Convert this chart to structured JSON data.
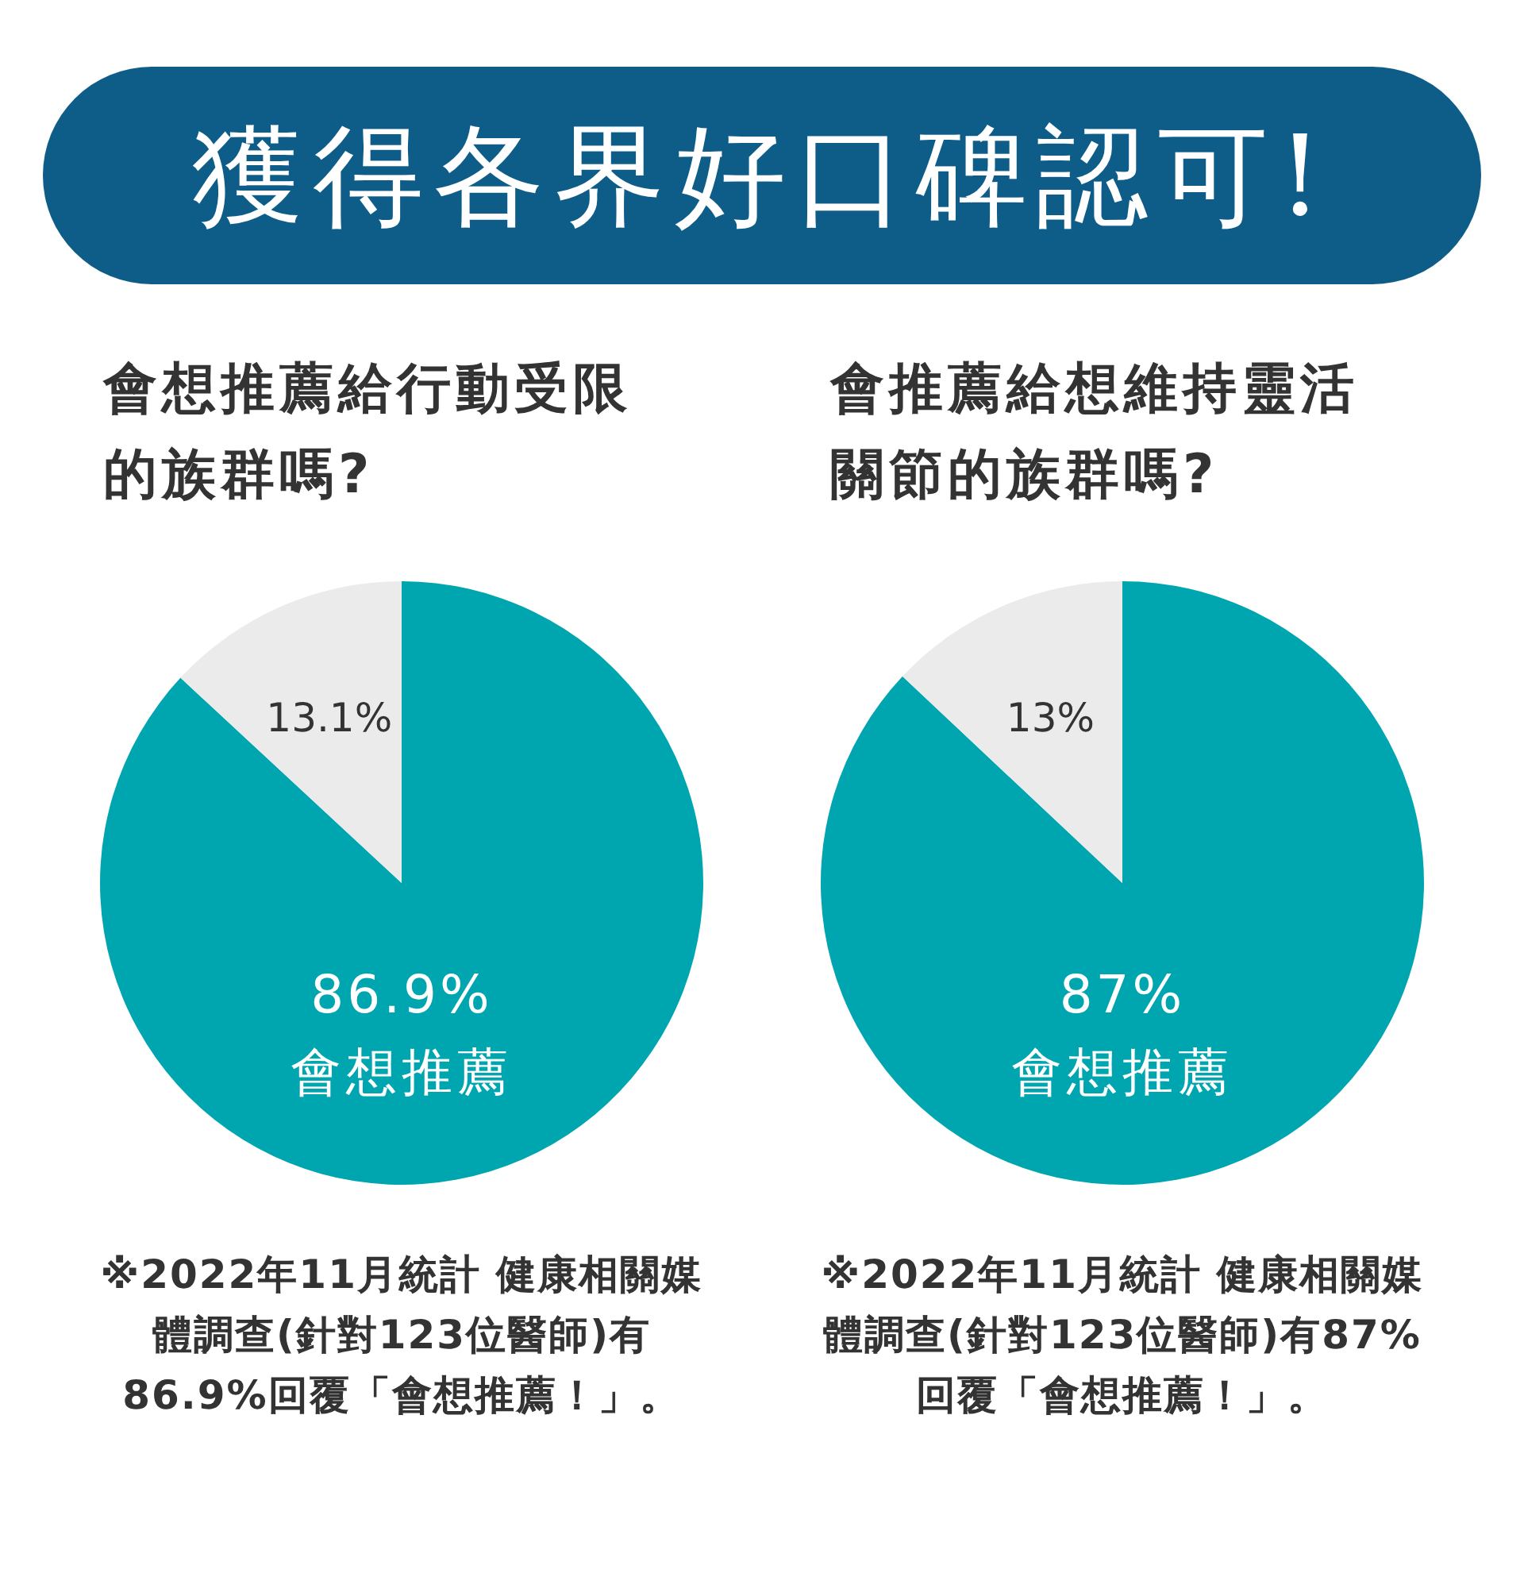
{
  "chart_data": [
    {
      "type": "pie",
      "title": "獲得各界好口碑認可!",
      "subtitle": "會想推薦給行動受限的族群嗎?",
      "categories": [
        "會想推薦",
        null
      ],
      "values": [
        86.9,
        13.1
      ],
      "colors": [
        "#00a6af",
        "#ebebeb"
      ],
      "value_labels": [
        "86.9%",
        "13.1%"
      ],
      "annotations": [
        "※2022年11月統計 健康相關媒體調查(針對123位醫師)有86.9%回覆「會想推薦！」。"
      ]
    },
    {
      "type": "pie",
      "subtitle": "會推薦給想維持靈活關節的族群嗎?",
      "categories": [
        "會想推薦",
        null
      ],
      "values": [
        87,
        13
      ],
      "colors": [
        "#00a6af",
        "#ebebeb"
      ],
      "value_labels": [
        "87%",
        "13%"
      ],
      "annotations": [
        "※2022年11月統計 健康相關媒體調查(針對123位醫師)有87%回覆「會想推薦！」。"
      ]
    }
  ]
}
